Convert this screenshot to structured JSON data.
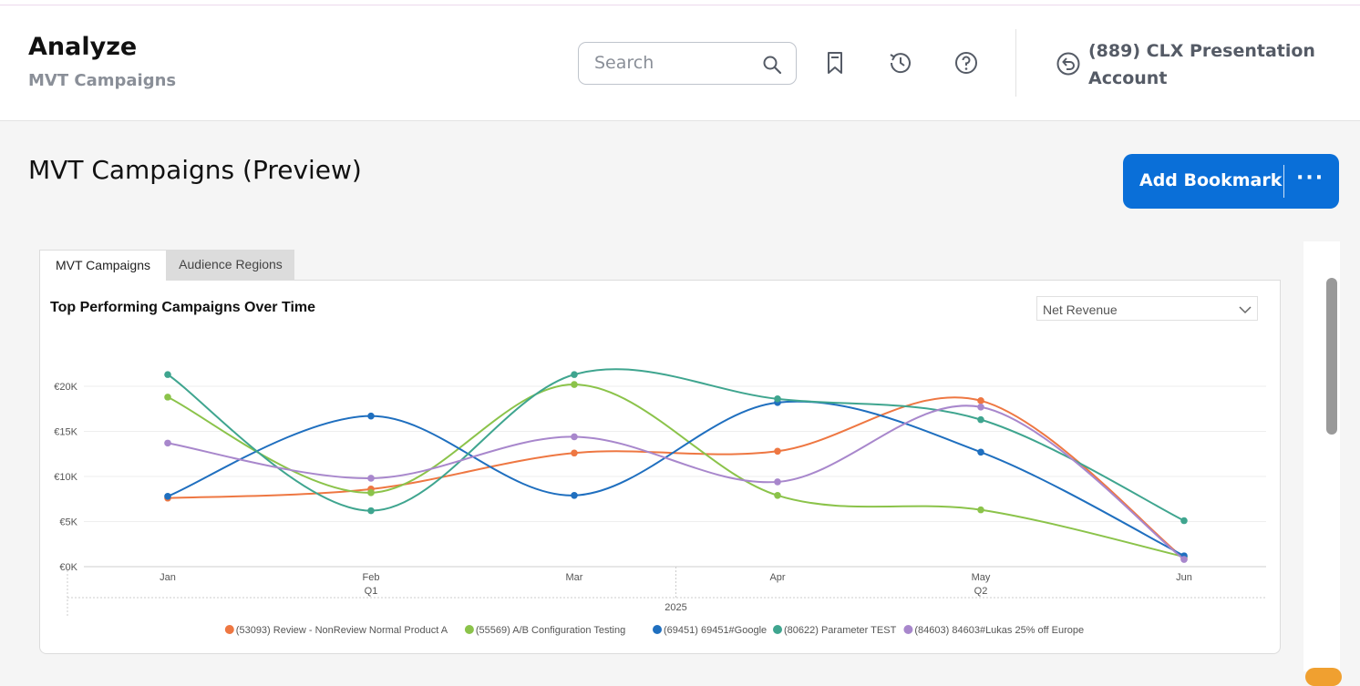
{
  "header": {
    "title": "Analyze",
    "subtitle": "MVT Campaigns",
    "search_placeholder": "Search",
    "account": "(889) CLX Presentation Account"
  },
  "icons": [
    "search-icon",
    "bookmark-icon",
    "history-icon",
    "help-icon",
    "back-arrow-icon",
    "chevron-down-icon"
  ],
  "page": {
    "title": "MVT Campaigns (Preview)",
    "bookmark_label": "Add Bookmark",
    "more_label": "···"
  },
  "tabs": [
    {
      "label": "MVT Campaigns",
      "active": true
    },
    {
      "label": "Audience Regions",
      "active": false
    }
  ],
  "chart_panel": {
    "title": "Top Performing Campaigns Over Time",
    "metric": "Net Revenue"
  },
  "chart_data": {
    "type": "line",
    "title": "Top Performing Campaigns Over Time",
    "categories": [
      "Jan",
      "Feb",
      "Mar",
      "Apr",
      "May",
      "Jun"
    ],
    "quarters": [
      {
        "label": "Q1",
        "under": "Feb"
      },
      {
        "label": "Q2",
        "under": "May"
      }
    ],
    "year": "2025",
    "y_ticks": [
      "€0K",
      "€5K",
      "€10K",
      "€15K",
      "€20K"
    ],
    "ylim": [
      0,
      20000
    ],
    "grid": true,
    "legend": "bottom",
    "series": [
      {
        "name": "(53093) Review - NonReview Normal Product A",
        "color": "#ee7742",
        "values": [
          7600,
          8600,
          12600,
          12800,
          18400,
          900
        ]
      },
      {
        "name": "(55569) A/B Configuration Testing",
        "color": "#8bc34a",
        "values": [
          18800,
          8200,
          20200,
          7900,
          6300,
          1100
        ]
      },
      {
        "name": "(69451) 69451#Google",
        "color": "#1f6fbf",
        "values": [
          7800,
          16700,
          7900,
          18200,
          12700,
          1200
        ]
      },
      {
        "name": "(80622) Parameter TEST",
        "color": "#3fa58f",
        "values": [
          21300,
          6200,
          21300,
          18600,
          16300,
          5100
        ]
      },
      {
        "name": "(84603) 84603#Lukas 25% off Europe",
        "color": "#a887cc",
        "values": [
          13700,
          9800,
          14400,
          9400,
          17700,
          800
        ]
      }
    ]
  }
}
